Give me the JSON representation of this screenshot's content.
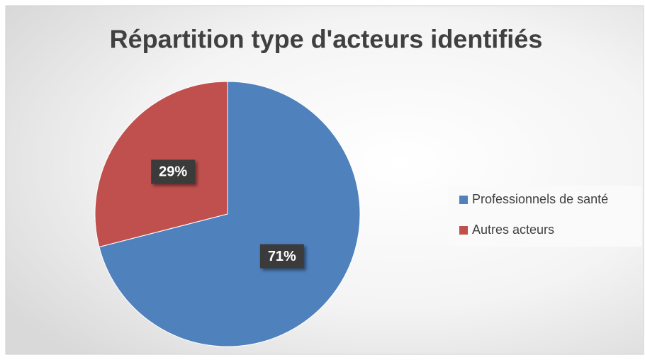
{
  "chart_data": {
    "type": "pie",
    "title": "Répartition type d'acteurs identifiés",
    "categories": [
      "Professionnels de santé",
      "Autres acteurs"
    ],
    "values": [
      71,
      29
    ],
    "value_labels": [
      "71%",
      "29%"
    ],
    "colors": [
      "#4f81bd",
      "#c0504d"
    ],
    "legend": "right"
  }
}
